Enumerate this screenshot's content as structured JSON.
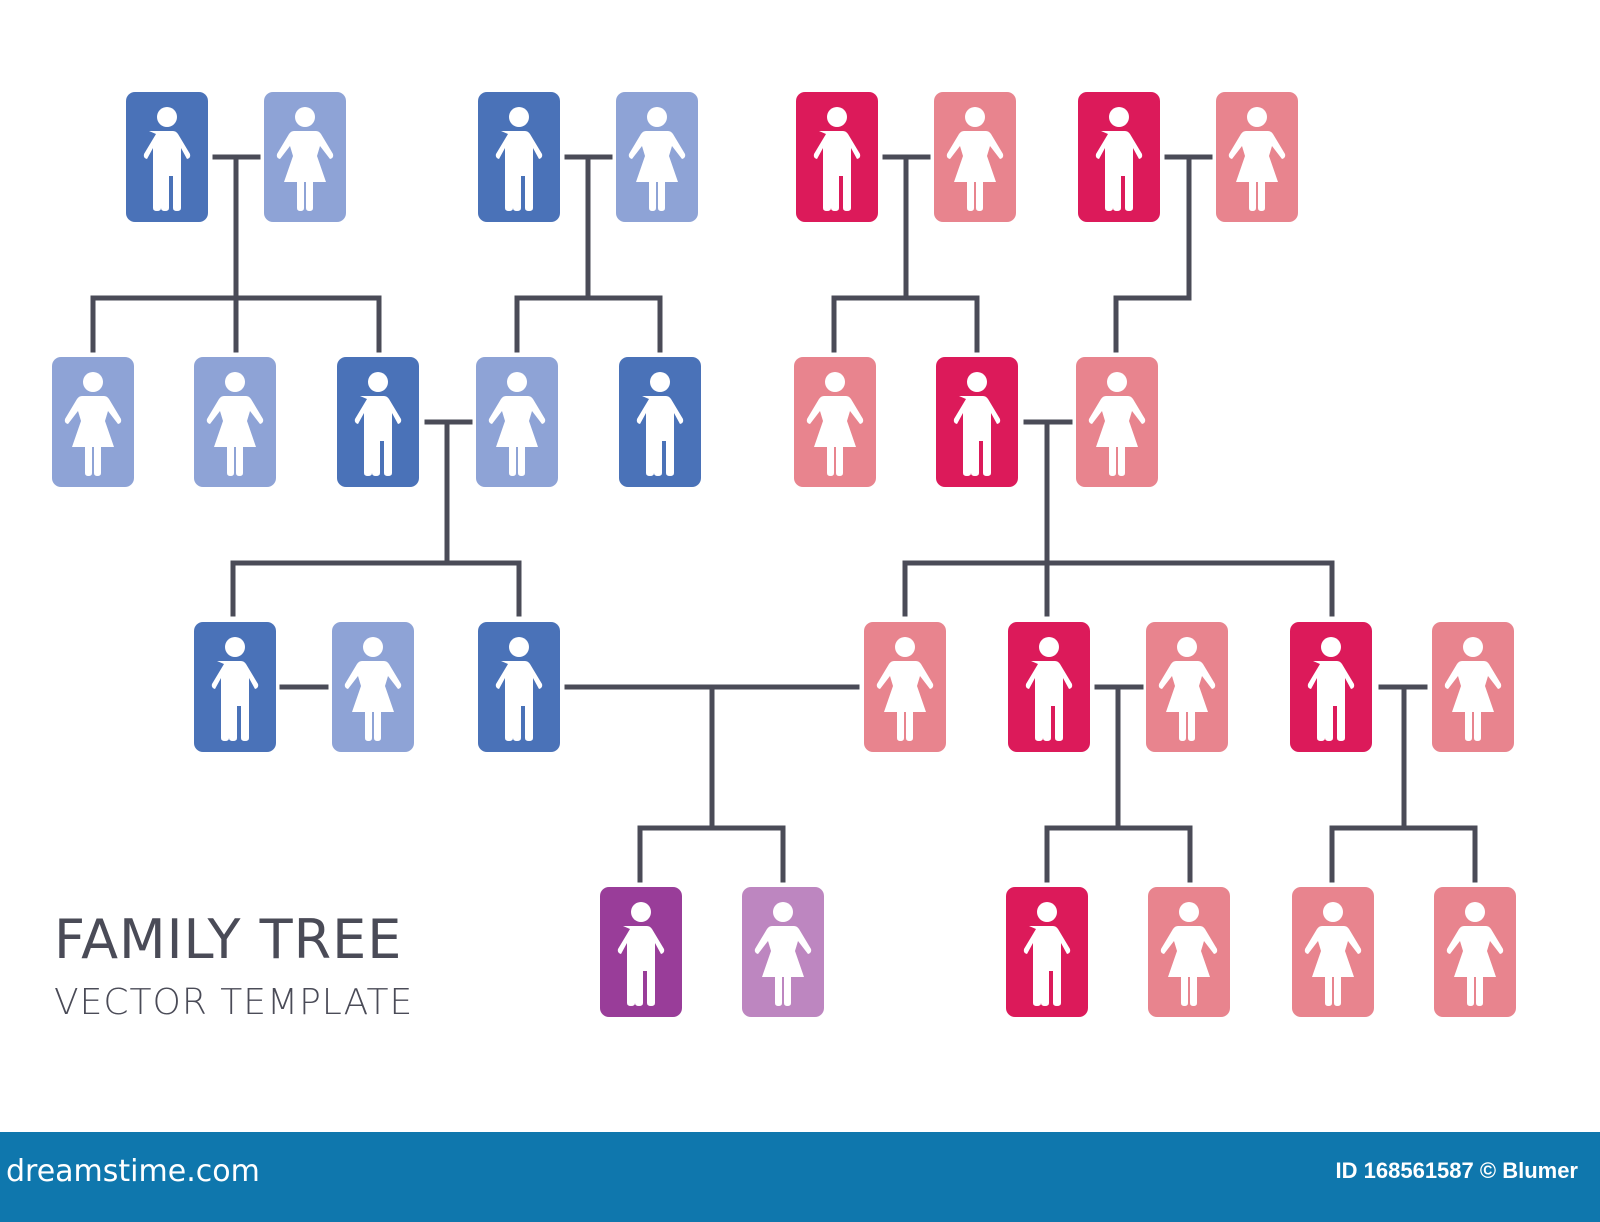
{
  "title": "FAMILY TREE",
  "subtitle": "VECTOR TEMPLATE",
  "colors": {
    "male_blue": "#4a72b8",
    "female_blue": "#8ea3d6",
    "male_red": "#dc1a5a",
    "female_red": "#e8848e",
    "male_purple": "#993d99",
    "female_purple": "#bd86c0",
    "connector": "#4a4b57",
    "footer": "#0f77ad"
  },
  "persons": [
    {
      "gender": "male",
      "color": "male_blue"
    },
    {
      "gender": "female",
      "color": "female_blue"
    },
    {
      "gender": "male",
      "color": "male_blue"
    },
    {
      "gender": "female",
      "color": "female_blue"
    },
    {
      "gender": "male",
      "color": "male_red"
    },
    {
      "gender": "female",
      "color": "female_red"
    },
    {
      "gender": "male",
      "color": "male_red"
    },
    {
      "gender": "female",
      "color": "female_red"
    },
    {
      "gender": "female",
      "color": "female_blue"
    },
    {
      "gender": "female",
      "color": "female_blue"
    },
    {
      "gender": "male",
      "color": "male_blue"
    },
    {
      "gender": "female",
      "color": "female_blue"
    },
    {
      "gender": "male",
      "color": "male_blue"
    },
    {
      "gender": "female",
      "color": "female_red"
    },
    {
      "gender": "male",
      "color": "male_red"
    },
    {
      "gender": "female",
      "color": "female_red"
    },
    {
      "gender": "male",
      "color": "male_blue"
    },
    {
      "gender": "female",
      "color": "female_blue"
    },
    {
      "gender": "male",
      "color": "male_blue"
    },
    {
      "gender": "female",
      "color": "female_red"
    },
    {
      "gender": "male",
      "color": "male_red"
    },
    {
      "gender": "female",
      "color": "female_red"
    },
    {
      "gender": "male",
      "color": "male_red"
    },
    {
      "gender": "female",
      "color": "female_red"
    },
    {
      "gender": "male",
      "color": "male_purple"
    },
    {
      "gender": "female",
      "color": "female_purple"
    },
    {
      "gender": "male",
      "color": "male_red"
    },
    {
      "gender": "female",
      "color": "female_red"
    },
    {
      "gender": "female",
      "color": "female_red"
    },
    {
      "gender": "female",
      "color": "female_red"
    }
  ],
  "footer": {
    "logo": "dreamstime.com",
    "credit": "ID 168561587 © Blumer"
  }
}
